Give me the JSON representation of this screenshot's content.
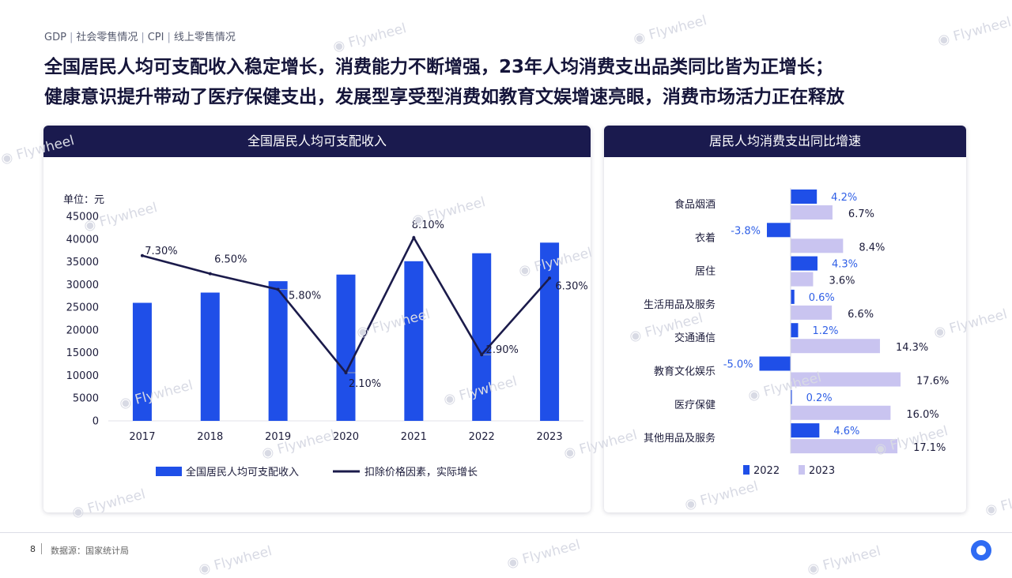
{
  "breadcrumb": {
    "items": [
      "GDP",
      "社会零售情况",
      "CPI",
      "线上零售情况"
    ]
  },
  "headline": {
    "line1": "全国居民人均可支配收入稳定增长，消费能力不断增强，23年人均消费支出品类同比皆为正增长；",
    "line2": "健康意识提升带动了医疗保健支出，发展型享受型消费如教育文娱增速亮眼，消费市场活力正在释放"
  },
  "watermark": "Flywheel",
  "footer": {
    "page": "8",
    "source": "数据源：国家统计局"
  },
  "colors": {
    "navy": "#1a1a4e",
    "bar_blue": "#1f4fe8",
    "light_lavender": "#c9c4f0",
    "line": "#1b1b4b"
  },
  "chart_data": [
    {
      "type": "bar+line",
      "title": "全国居民人均可支配收入",
      "unit_label": "单位：元",
      "categories": [
        "2017",
        "2018",
        "2019",
        "2020",
        "2021",
        "2022",
        "2023"
      ],
      "ylim": [
        0,
        45000
      ],
      "yticks": [
        "45000",
        "40000",
        "35000",
        "30000",
        "25000",
        "20000",
        "15000",
        "10000",
        "5000",
        "0"
      ],
      "series": [
        {
          "name": "全国居民人均可支配收入",
          "kind": "bar",
          "values": [
            25974,
            28228,
            30733,
            32189,
            35128,
            36883,
            39218
          ]
        },
        {
          "name": "扣除价格因素，实际增长",
          "kind": "line",
          "values": [
            7.3,
            6.5,
            5.8,
            2.1,
            8.1,
            2.9,
            6.3
          ],
          "labels": [
            "7.30%",
            "6.50%",
            "5.80%",
            "2.10%",
            "8.10%",
            "2.90%",
            "6.30%"
          ]
        }
      ],
      "legend_position": "bottom"
    },
    {
      "type": "horizontal-bar",
      "title": "居民人均消费支出同比增速",
      "categories": [
        "食品烟酒",
        "衣着",
        "居住",
        "生活用品及服务",
        "交通通信",
        "教育文化娱乐",
        "医疗保健",
        "其他用品及服务"
      ],
      "series": [
        {
          "name": "2022",
          "values": [
            4.2,
            -3.8,
            4.3,
            0.6,
            1.2,
            -5.0,
            0.2,
            4.6
          ],
          "labels": [
            "4.2%",
            "-3.8%",
            "4.3%",
            "0.6%",
            "1.2%",
            "-5.0%",
            "0.2%",
            "4.6%"
          ]
        },
        {
          "name": "2023",
          "values": [
            6.7,
            8.4,
            3.6,
            6.6,
            14.3,
            17.6,
            16.0,
            17.1
          ],
          "labels": [
            "6.7%",
            "8.4%",
            "3.6%",
            "6.6%",
            "14.3%",
            "17.6%",
            "16.0%",
            "17.1%"
          ]
        }
      ],
      "legend_position": "bottom-left"
    }
  ]
}
